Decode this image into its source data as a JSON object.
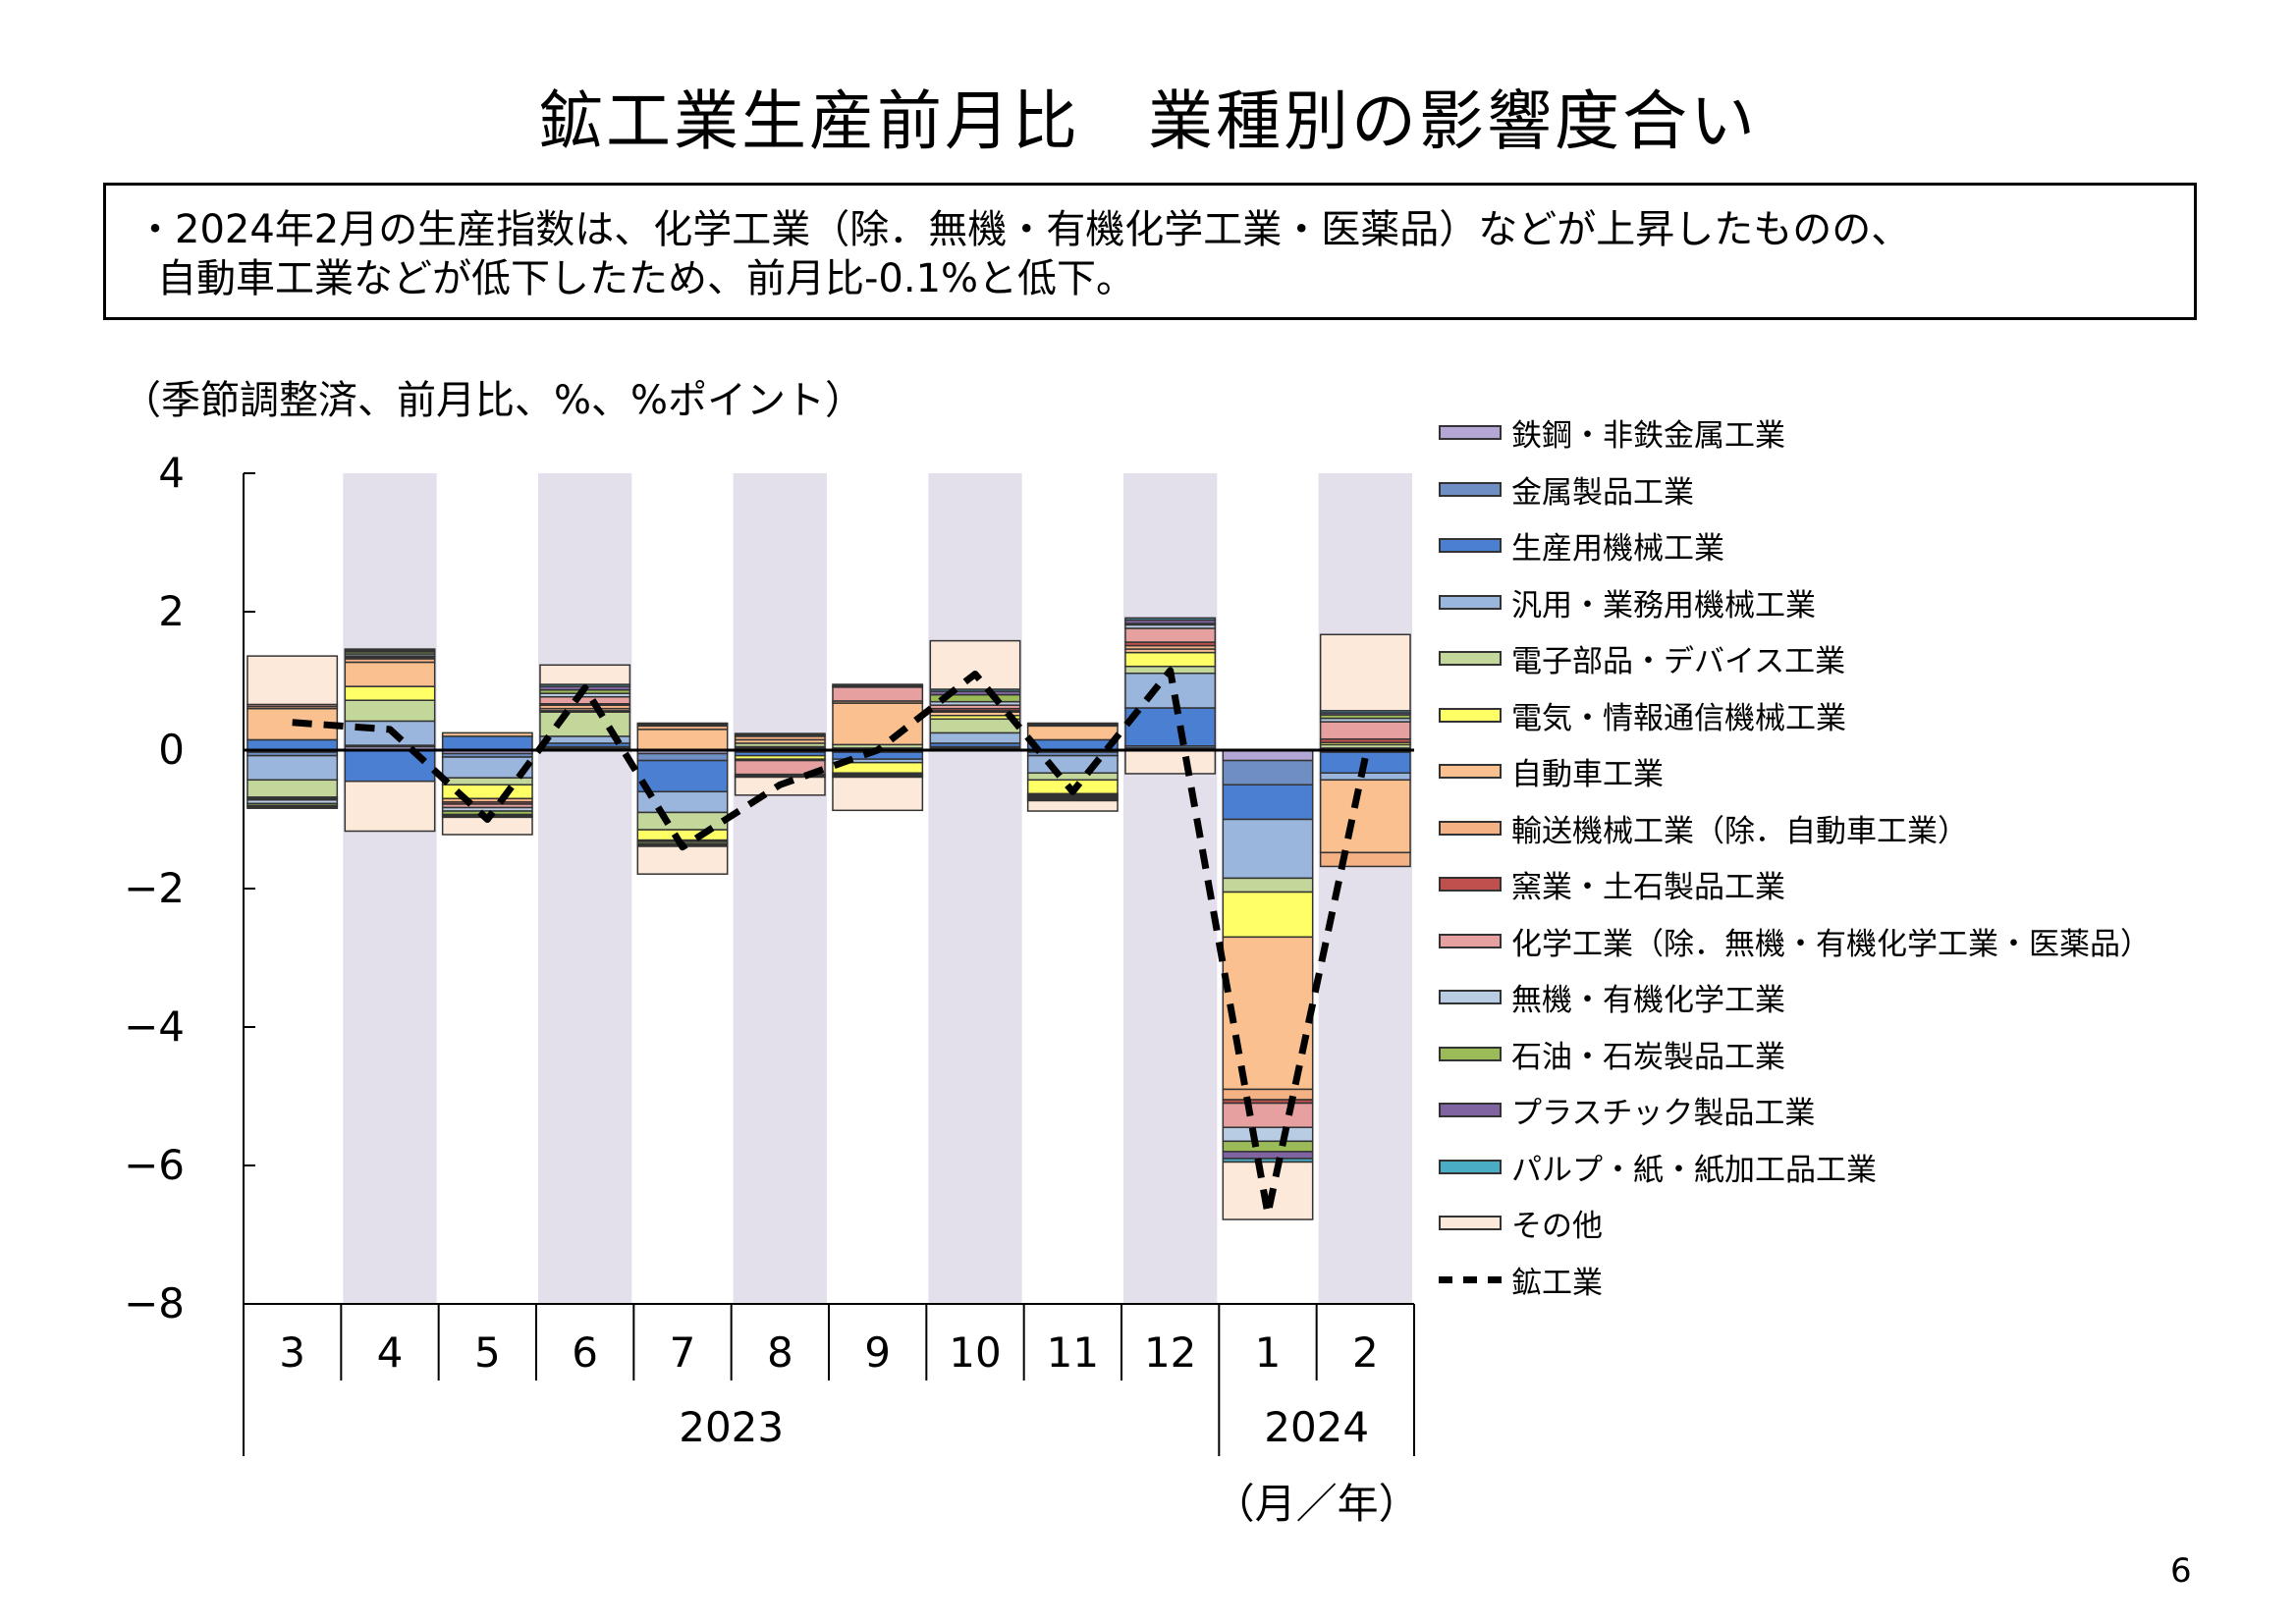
{
  "title": "鉱工業生産前月比　業種別の影響度合い",
  "summary": {
    "line1": "・2024年2月の生産指数は、化学工業（除．無機・有機化学工業・医薬品）などが上昇したものの、",
    "line2": "自動車工業などが低下したため、前月比-0.1%と低下。"
  },
  "unit_label": "（季節調整済、前月比、%、%ポイント）",
  "page_number": "6",
  "chart_data": {
    "type": "bar",
    "stacked": true,
    "categories": [
      "3",
      "4",
      "5",
      "6",
      "7",
      "8",
      "9",
      "10",
      "11",
      "12",
      "1",
      "2"
    ],
    "year_labels": [
      {
        "label": "2023",
        "from": 0,
        "to": 9
      },
      {
        "label": "2024",
        "from": 10,
        "to": 11
      }
    ],
    "xlabel": "（月／年）",
    "ylim": [
      -8,
      4
    ],
    "yticks": [
      4,
      2,
      0,
      -2,
      -4,
      -6,
      -8
    ],
    "ytick_labels": [
      "4",
      "2",
      "0",
      "−2",
      "−4",
      "−6",
      "−8"
    ],
    "shaded_categories": [
      1,
      3,
      5,
      7,
      9,
      11
    ],
    "shade_color": "#e3dfeb",
    "series": [
      {
        "name": "鉄鋼・非鉄金属工業",
        "color": "#b4a7d6",
        "values": [
          -0.03,
          0.05,
          -0.05,
          0.03,
          -0.05,
          0.03,
          0.03,
          0.03,
          -0.03,
          0.03,
          -0.15,
          0.03
        ]
      },
      {
        "name": "金属製品工業",
        "color": "#6f8fc4",
        "values": [
          -0.05,
          0.02,
          -0.05,
          0.02,
          -0.1,
          -0.03,
          -0.03,
          0.02,
          -0.05,
          0.03,
          -0.35,
          -0.03
        ]
      },
      {
        "name": "生産用機械工業",
        "color": "#4a7fd1",
        "values": [
          0.15,
          -0.45,
          0.2,
          0.05,
          -0.45,
          -0.05,
          -0.1,
          0.05,
          0.15,
          0.55,
          -0.5,
          -0.3
        ]
      },
      {
        "name": "汎用・業務用機械工業",
        "color": "#9ab6dd",
        "values": [
          -0.35,
          0.35,
          -0.3,
          0.1,
          -0.3,
          0.02,
          -0.05,
          0.15,
          -0.25,
          0.5,
          -0.85,
          -0.1
        ]
      },
      {
        "name": "電子部品・デバイス工業",
        "color": "#c4d79b",
        "values": [
          -0.25,
          0.3,
          -0.1,
          0.35,
          -0.25,
          0.05,
          0.05,
          0.2,
          -0.1,
          0.1,
          -0.2,
          0.05
        ]
      },
      {
        "name": "電気・情報通信機械工業",
        "color": "#ffff66",
        "values": [
          -0.02,
          0.2,
          -0.2,
          0.02,
          -0.15,
          -0.05,
          -0.15,
          0.05,
          -0.2,
          0.2,
          -0.65,
          0.03
        ]
      },
      {
        "name": "自動車工業",
        "color": "#fac090",
        "values": [
          0.45,
          0.35,
          0.05,
          0.03,
          0.3,
          0.05,
          0.6,
          0.05,
          0.2,
          0.05,
          -2.2,
          -1.05
        ]
      },
      {
        "name": "輸送機械工業（除．自動車工業）",
        "color": "#f4b183",
        "values": [
          0.03,
          0.05,
          -0.05,
          0.05,
          0.05,
          0.05,
          0.03,
          0.02,
          0.02,
          0.05,
          -0.15,
          -0.2
        ]
      },
      {
        "name": "窯業・土石製品工業",
        "color": "#c0504d",
        "values": [
          -0.02,
          0.02,
          -0.03,
          0.02,
          -0.02,
          -0.02,
          -0.02,
          0.03,
          -0.02,
          0.05,
          -0.05,
          0.05
        ]
      },
      {
        "name": "化学工業（除．無機・有機化学工業・医薬品）",
        "color": "#e6a0a0",
        "values": [
          0.03,
          0.02,
          -0.05,
          0.1,
          0.02,
          -0.2,
          0.2,
          0.05,
          0.02,
          0.2,
          -0.35,
          0.25
        ]
      },
      {
        "name": "無機・有機化学工業",
        "color": "#b8cce4",
        "values": [
          -0.05,
          0.03,
          -0.05,
          0.05,
          0.02,
          -0.02,
          -0.02,
          0.05,
          -0.02,
          0.05,
          -0.2,
          0.05
        ]
      },
      {
        "name": "石油・石炭製品工業",
        "color": "#9bbb59",
        "values": [
          -0.03,
          0.03,
          -0.05,
          0.05,
          -0.03,
          0.02,
          -0.02,
          0.1,
          -0.02,
          0.02,
          -0.15,
          0.05
        ]
      },
      {
        "name": "プラスチック製品工業",
        "color": "#8064a2",
        "values": [
          -0.02,
          0.02,
          -0.02,
          0.05,
          -0.02,
          -0.02,
          0.02,
          0.05,
          -0.02,
          0.05,
          -0.1,
          0.03
        ]
      },
      {
        "name": "パルプ・紙・紙加工品工業",
        "color": "#4bacc6",
        "values": [
          -0.02,
          0.02,
          -0.02,
          0.03,
          -0.02,
          0.02,
          0.02,
          0.03,
          -0.02,
          0.03,
          -0.05,
          0.03
        ]
      },
      {
        "name": "その他",
        "color": "#fde9d9",
        "values": [
          0.7,
          -0.72,
          -0.25,
          0.28,
          -0.4,
          -0.26,
          -0.48,
          0.7,
          -0.15,
          -0.34,
          -0.83,
          1.1
        ]
      }
    ],
    "line_series": {
      "name": "鉱工業",
      "color": "#000000",
      "values": [
        0.4,
        0.3,
        -1.0,
        0.9,
        -1.4,
        -0.5,
        0.0,
        1.1,
        -0.6,
        1.15,
        -6.7,
        -0.1
      ]
    }
  }
}
